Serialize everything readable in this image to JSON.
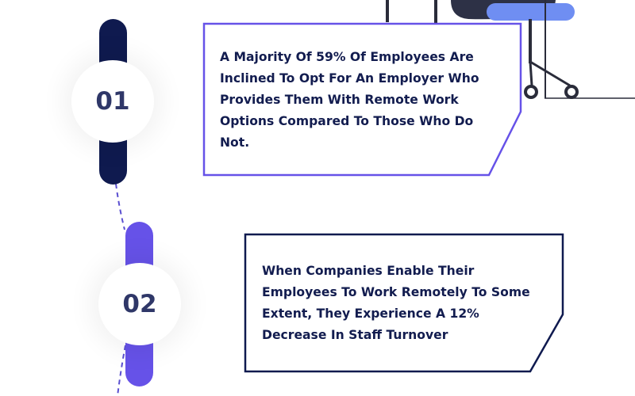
{
  "steps": [
    {
      "number": "01",
      "text": "A Majority Of 59% Of Employees Are Inclined To Opt For An Employer Who Provides Them With Remote Work Options Compared To Those Who Do Not."
    },
    {
      "number": "02",
      "text": "When Companies Enable Their Employees To Work Remotely To Some Extent, They Experience A 12% Decrease In Staff Turnover"
    }
  ],
  "colors": {
    "navy": "#0f1a4f",
    "purple": "#6652e8",
    "text": "#121c4f",
    "number": "#2f3768",
    "chair_seat": "#6f8ef2",
    "chair_frame": "#2a2c3a"
  },
  "icons": {
    "illustration": "office-chair-illustration"
  }
}
